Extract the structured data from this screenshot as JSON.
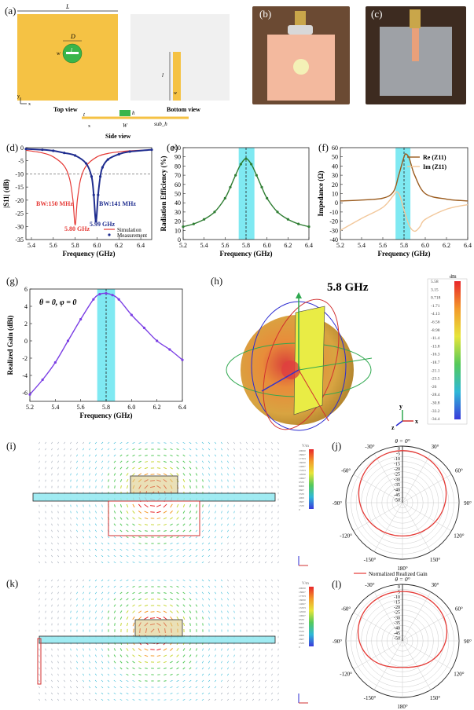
{
  "panels": {
    "a": {
      "label": "(a)",
      "top_view": "Top view",
      "bottom_view": "Bottom view",
      "side_view": "Side view",
      "dims": {
        "L1": "L",
        "L1_sub": "1",
        "D": "D",
        "w": "w",
        "l": "l",
        "l1": "l",
        "l1_sub": "1",
        "w1": "w",
        "w1_sub": "1",
        "t": "t",
        "h": "h",
        "W1": "W",
        "W1_sub": "1",
        "sub_h": "sub_h"
      },
      "axis": {
        "y": "y",
        "x": "x"
      }
    },
    "b": {
      "label": "(b)"
    },
    "c": {
      "label": "(c)"
    },
    "d": {
      "label": "(d)",
      "annotations": [
        "BW:150 MHz",
        "BW:141 MHz",
        "5.80 GHz",
        "5.99 GHz"
      ],
      "legend": [
        "Simulation",
        "Measurement"
      ]
    },
    "e": {
      "label": "(e)"
    },
    "f": {
      "label": "(f)",
      "legend": [
        "Re (Z11)",
        "Im (Z11)"
      ]
    },
    "g": {
      "label": "(g)",
      "annotation": "θ = 0, φ = 0"
    },
    "h": {
      "label": "(h)",
      "title": "5.8 GHz",
      "unit": "dBi",
      "scale": [
        "5.58",
        "3.15",
        "0.718",
        "-1.71",
        "-4.13",
        "-6.56",
        "-8.98",
        "-11.4",
        "-13.8",
        "-16.3",
        "-18.7",
        "-21.1",
        "-23.5",
        "-26",
        "-28.4",
        "-30.8",
        "-33.2",
        "-34.4"
      ],
      "axis": {
        "z": "z",
        "y": "y",
        "x": "x"
      }
    },
    "i": {
      "label": "(i)",
      "unit": "V/m",
      "scale": [
        "20000",
        "18667",
        "17333",
        "16000",
        "14667",
        "13333",
        "12000",
        "10667",
        "9333",
        "8000",
        "6667",
        "5333",
        "4000",
        "2667",
        "1333",
        "0"
      ]
    },
    "j": {
      "label": "(j)",
      "top": "θ = 0°",
      "angles": [
        "30°",
        "60°",
        "90°",
        "120°",
        "150°",
        "180°",
        "-150°",
        "-120°",
        "-90°",
        "-60°",
        "-30°"
      ],
      "rings": [
        "0",
        "-5",
        "-10",
        "-15",
        "-20",
        "-25",
        "-30",
        "-35",
        "-40",
        "-45",
        "-50"
      ],
      "legend": "Normalized Realized Gain",
      "caption": "E-plane (x-z plane)"
    },
    "k": {
      "label": "(k)",
      "unit": "V/m",
      "scale": [
        "20000",
        "18667",
        "17333",
        "16000",
        "14667",
        "13333",
        "12000",
        "10667",
        "9333",
        "8000",
        "6667",
        "5333",
        "4000",
        "2667",
        "1333",
        "0"
      ]
    },
    "l": {
      "label": "(l)",
      "top": "θ = 0°",
      "angles": [
        "30°",
        "60°",
        "90°",
        "120°",
        "150°",
        "180°",
        "-150°",
        "-120°",
        "-90°",
        "-60°",
        "-30°"
      ],
      "rings": [
        "0",
        "-5",
        "-10",
        "-15",
        "-20",
        "-25",
        "-30",
        "-35",
        "-40",
        "-45",
        "-50"
      ],
      "legend": "Normalized Realized Gain",
      "caption": "H-plane (y-z plane)"
    }
  },
  "colors": {
    "patch": "#f5c244",
    "ground": "#f0f0f0",
    "sim": "#e53935",
    "meas": "#1f2d8f",
    "eff": "#2e7d32",
    "re": "#9a5a1c",
    "im": "#f2c79a",
    "gain": "#7b3fe4",
    "band": "#7fe9f2"
  },
  "chart_data": [
    {
      "panel": "d",
      "type": "line",
      "xlabel": "Frequency (GHz)",
      "ylabel": "|S11| (dB)",
      "xlim": [
        5.35,
        6.5
      ],
      "ylim": [
        -35,
        0
      ],
      "xticks": [
        "5.4",
        "5.6",
        "5.8",
        "6.0",
        "6.2",
        "6.4"
      ],
      "yticks": [
        "0",
        "-5",
        "-10",
        "-15",
        "-20",
        "-25",
        "-30",
        "-35"
      ],
      "series": [
        {
          "name": "Simulation",
          "x": [
            5.35,
            5.5,
            5.6,
            5.7,
            5.75,
            5.78,
            5.8,
            5.82,
            5.85,
            5.9,
            6.0,
            6.1,
            6.2,
            6.3,
            6.5
          ],
          "y": [
            -1.0,
            -2.0,
            -3.5,
            -7.0,
            -12.0,
            -20.0,
            -29.5,
            -20.0,
            -12.0,
            -7.0,
            -3.5,
            -2.2,
            -1.6,
            -1.2,
            -0.8
          ]
        },
        {
          "name": "Measurement",
          "x": [
            5.35,
            5.5,
            5.6,
            5.7,
            5.8,
            5.9,
            5.95,
            5.97,
            5.99,
            6.01,
            6.03,
            6.05,
            6.1,
            6.2,
            6.3,
            6.5
          ],
          "y": [
            -0.5,
            -0.8,
            -1.2,
            -2.0,
            -3.0,
            -6.0,
            -11.0,
            -18.0,
            -28.0,
            -18.0,
            -11.0,
            -7.5,
            -4.5,
            -2.5,
            -1.5,
            -0.8
          ]
        }
      ]
    },
    {
      "panel": "e",
      "type": "line",
      "xlabel": "Frequency (GHz)",
      "ylabel": "Radiation Efficiency (%)",
      "xlim": [
        5.2,
        6.4
      ],
      "ylim": [
        0,
        100
      ],
      "xticks": [
        "5.2",
        "5.4",
        "5.6",
        "5.8",
        "6.0",
        "6.2",
        "6.4"
      ],
      "yticks": [
        "0",
        "10",
        "20",
        "30",
        "40",
        "50",
        "60",
        "70",
        "80",
        "90",
        "100"
      ],
      "series": [
        {
          "name": "",
          "x": [
            5.2,
            5.3,
            5.4,
            5.5,
            5.6,
            5.65,
            5.7,
            5.75,
            5.8,
            5.85,
            5.9,
            5.95,
            6.0,
            6.1,
            6.2,
            6.3,
            6.4
          ],
          "y": [
            14,
            17,
            22,
            30,
            45,
            57,
            70,
            82,
            88,
            82,
            70,
            57,
            45,
            30,
            22,
            17,
            14
          ]
        }
      ]
    },
    {
      "panel": "f",
      "type": "line",
      "xlabel": "Frequency (GHz)",
      "ylabel": "Impedance (Ω)",
      "xlim": [
        5.2,
        6.4
      ],
      "ylim": [
        -40,
        60
      ],
      "xticks": [
        "5.2",
        "5.4",
        "5.6",
        "5.8",
        "6.0",
        "6.2",
        "6.4"
      ],
      "yticks": [
        "-40",
        "-30",
        "-20",
        "-10",
        "0",
        "10",
        "20",
        "30",
        "40",
        "50",
        "60"
      ],
      "series": [
        {
          "name": "Re (Z11)",
          "x": [
            5.2,
            5.4,
            5.6,
            5.7,
            5.75,
            5.8,
            5.82,
            5.85,
            5.9,
            6.0,
            6.2,
            6.4
          ],
          "y": [
            2,
            3,
            5,
            12,
            30,
            50,
            53,
            48,
            30,
            10,
            4,
            2
          ]
        },
        {
          "name": "Im (Z11)",
          "x": [
            5.2,
            5.4,
            5.6,
            5.7,
            5.73,
            5.76,
            5.8,
            5.85,
            5.9,
            5.95,
            6.0,
            6.2,
            6.4
          ],
          "y": [
            -30,
            -17,
            -5,
            8,
            12,
            8,
            -8,
            -25,
            -31,
            -26,
            -18,
            -7,
            -2
          ]
        }
      ]
    },
    {
      "panel": "g",
      "type": "line",
      "xlabel": "Frequency (GHz)",
      "ylabel": "Realized Gain (dBi)",
      "xlim": [
        5.2,
        6.4
      ],
      "ylim": [
        -7,
        6
      ],
      "xticks": [
        "5.2",
        "5.4",
        "5.6",
        "5.8",
        "6.0",
        "6.2",
        "6.4"
      ],
      "yticks": [
        "-6",
        "-4",
        "-2",
        "0",
        "2",
        "4",
        "6"
      ],
      "series": [
        {
          "name": "",
          "x": [
            5.2,
            5.3,
            5.4,
            5.5,
            5.6,
            5.7,
            5.75,
            5.8,
            5.85,
            5.9,
            6.0,
            6.1,
            6.2,
            6.3,
            6.4
          ],
          "y": [
            -6.2,
            -4.5,
            -2.5,
            0.0,
            2.5,
            4.8,
            5.4,
            5.5,
            5.3,
            4.8,
            3.0,
            1.5,
            0.0,
            -1.0,
            -2.2
          ]
        }
      ]
    }
  ]
}
